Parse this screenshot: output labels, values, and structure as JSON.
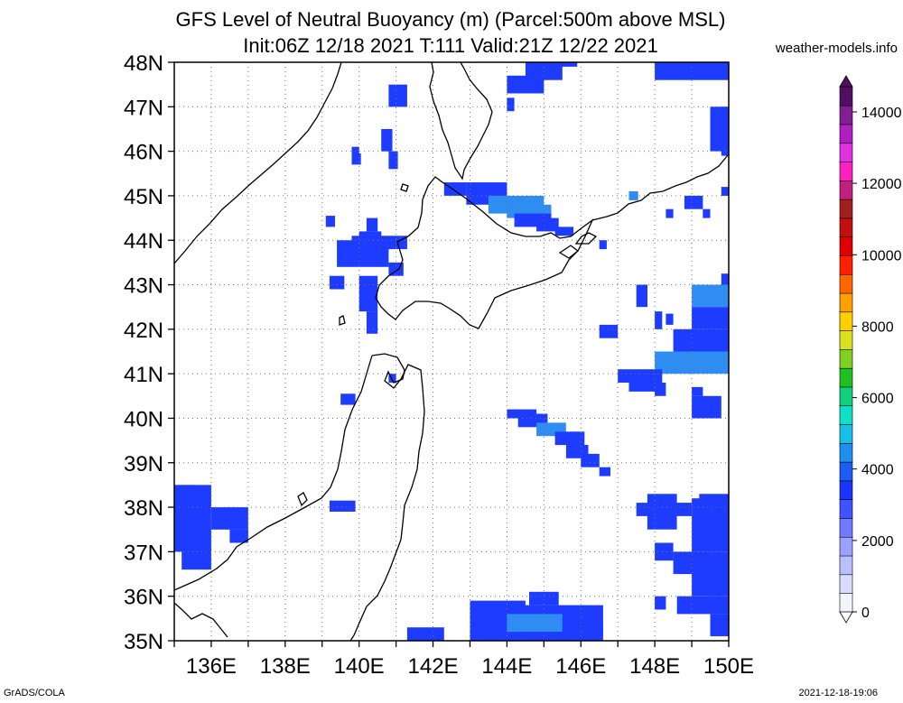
{
  "header": {
    "title_line1": "GFS Level of Neutral Buoyancy (m) (Parcel:500m above MSL)",
    "title_line2": "Init:06Z 12/18 2021 T:111 Valid:21Z 12/22 2021",
    "site": "weather-models.info"
  },
  "footer": {
    "left": "GrADS/COLA",
    "right": "2021-12-18-19:06"
  },
  "map": {
    "lon_range": [
      135,
      150
    ],
    "lat_range": [
      35,
      48
    ],
    "x_tick_labels": [
      "136E",
      "138E",
      "140E",
      "142E",
      "144E",
      "146E",
      "148E",
      "150E"
    ],
    "y_tick_labels": [
      "35N",
      "36N",
      "37N",
      "38N",
      "39N",
      "40N",
      "41N",
      "42N",
      "43N",
      "44N",
      "45N",
      "46N",
      "47N",
      "48N"
    ],
    "grid": "dotted",
    "field_color_main": "#1e3cff",
    "field_color_light": "#2f8cf0"
  },
  "colorbar": {
    "labels": [
      "0",
      "2000",
      "4000",
      "6000",
      "8000",
      "10000",
      "12000",
      "14000"
    ],
    "colors": [
      "#f4f4ff",
      "#d9dcff",
      "#b9bfff",
      "#9aa1ff",
      "#6f7bff",
      "#3f54ff",
      "#1a33ff",
      "#1c5cf5",
      "#1f8ef0",
      "#17c0e8",
      "#10e0c8",
      "#10d080",
      "#20c020",
      "#80d020",
      "#d8e020",
      "#ffd000",
      "#ffa000",
      "#ff6600",
      "#ff2000",
      "#e00000",
      "#c01010",
      "#a02020",
      "#c02080",
      "#ff20c0",
      "#e030e0",
      "#b020c0",
      "#802090",
      "#501060"
    ]
  }
}
